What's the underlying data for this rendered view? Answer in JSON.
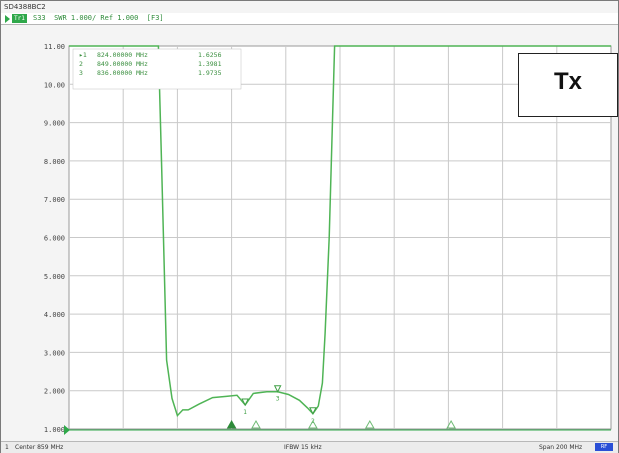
{
  "window": {
    "title": "SD4388BC2"
  },
  "trace": {
    "badge": "Tr1",
    "info": "S33  SWR 1.000/ Ref 1.000  [F3]"
  },
  "markers": [
    {
      "id": "▸1",
      "freq": "824.00000 MHz",
      "value": "1.6256"
    },
    {
      "id": "2",
      "freq": "849.00000 MHz",
      "value": "1.3981"
    },
    {
      "id": "3",
      "freq": "836.00000 MHz",
      "value": "1.9735"
    }
  ],
  "status": {
    "channel": "1",
    "center": "Center 859 MHz",
    "ifbw": "IFBW 15 kHz",
    "span": "Span 200 MHz",
    "badge": "RF"
  },
  "overlay": {
    "label": "Tx"
  },
  "colors": {
    "trace": "#4fb455",
    "accent": "#2fa84a",
    "grid": "#c9c9c9"
  },
  "chart_data": {
    "type": "line",
    "title": "",
    "xlabel": "",
    "ylabel": "SWR",
    "x_center_mhz": 859,
    "x_span_mhz": 200,
    "xlim": [
      759,
      959
    ],
    "ylim": [
      1,
      11
    ],
    "yticks": [
      "1.000",
      "2.000",
      "3.000",
      "4.000",
      "5.000",
      "6.000",
      "7.000",
      "8.000",
      "9.000",
      "10.00",
      "11.00"
    ],
    "grid": true,
    "series": [
      {
        "x": [
          759,
          792,
          793.2,
          795,
          797,
          799,
          801,
          803,
          807,
          812,
          817,
          821,
          824,
          827,
          832,
          836,
          840,
          844,
          847,
          849,
          851,
          852.5,
          853.5,
          855,
          857,
          959
        ],
        "y": [
          11.0,
          11.0,
          7.8,
          2.8,
          1.8,
          1.35,
          1.5,
          1.5,
          1.65,
          1.82,
          1.85,
          1.88,
          1.63,
          1.93,
          1.97,
          1.97,
          1.9,
          1.75,
          1.55,
          1.4,
          1.6,
          2.2,
          3.5,
          6.0,
          11.0,
          11.0
        ]
      }
    ],
    "active_markers": [
      {
        "label": "1",
        "x": 824,
        "y": 1.6256
      },
      {
        "label": "2",
        "x": 849,
        "y": 1.3981
      },
      {
        "label": "3",
        "x": 836,
        "y": 1.9735
      }
    ],
    "inactive_markers_x": [
      819,
      828,
      849,
      870,
      900
    ]
  }
}
